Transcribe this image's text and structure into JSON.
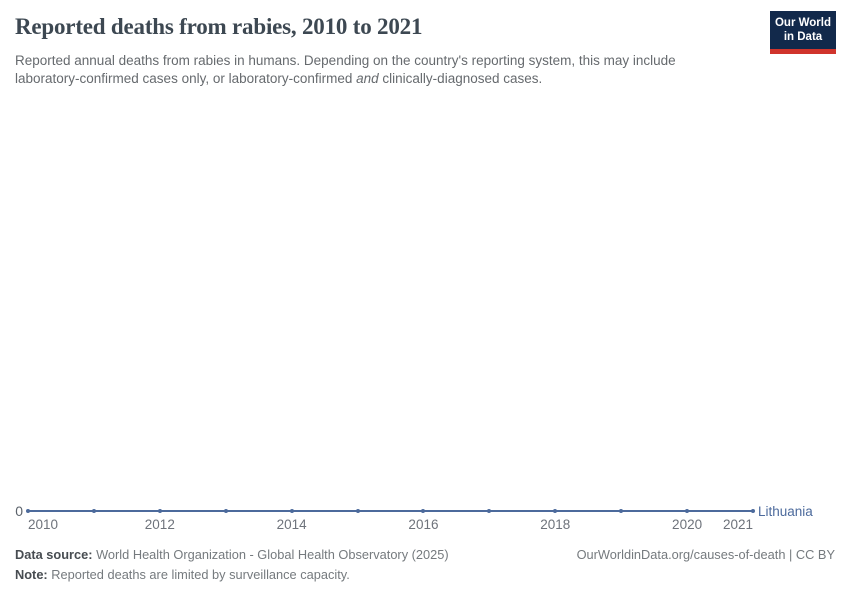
{
  "header": {
    "title": "Reported deaths from rabies, 2010 to 2021",
    "subtitle_line1": "Reported annual deaths from rabies in humans. Depending on the country's reporting system, this may include",
    "subtitle_line2_pre": "laboratory-confirmed cases only, or laboratory-confirmed ",
    "subtitle_line2_italic": "and",
    "subtitle_line2_post": " clinically-diagnosed cases.",
    "logo": {
      "line1": "Our World",
      "line2": "in Data",
      "bg_color": "#12294b",
      "accent_color": "#d0342c"
    }
  },
  "chart_data": {
    "type": "line",
    "title": "Reported deaths from rabies, 2010 to 2021",
    "x": [
      2010,
      2011,
      2012,
      2013,
      2014,
      2015,
      2016,
      2017,
      2018,
      2019,
      2020,
      2021
    ],
    "series": [
      {
        "name": "Lithuania",
        "color": "#4c6a9c",
        "values": [
          0,
          0,
          0,
          0,
          0,
          0,
          0,
          0,
          0,
          0,
          0,
          0
        ]
      }
    ],
    "x_ticks": [
      "2010",
      "2012",
      "2014",
      "2016",
      "2018",
      "2020",
      "2021"
    ],
    "y_ticks": [
      "0"
    ],
    "xlim": [
      2010,
      2021
    ],
    "ylim": [
      0,
      0
    ],
    "grid": false,
    "legend_position": "right-of-line",
    "entity_label": "Lithuania"
  },
  "footer": {
    "data_source_label": "Data source:",
    "data_source_value": " World Health Organization - Global Health Observatory (2025)",
    "note_label": "Note:",
    "note_value": " Reported deaths are limited by surveillance capacity.",
    "link": "OurWorldinData.org/causes-of-death | CC BY"
  }
}
